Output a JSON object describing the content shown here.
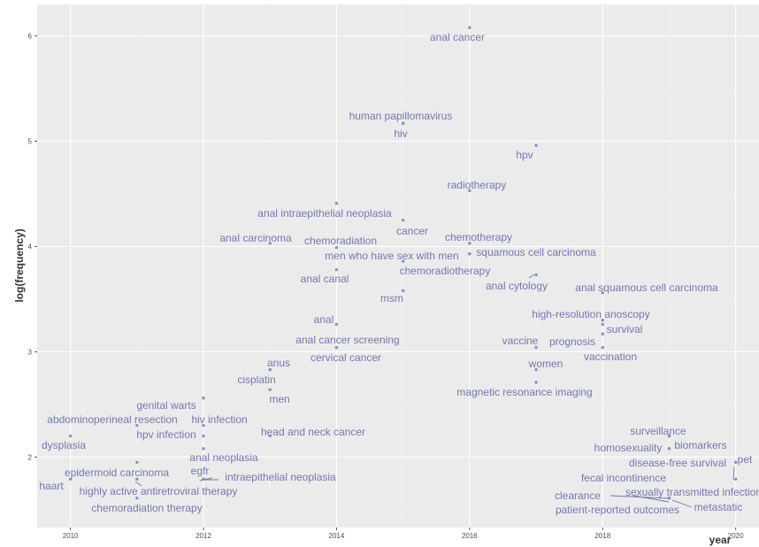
{
  "chart_data": {
    "type": "scatter",
    "title": "",
    "xlabel": "year",
    "ylabel": "log(frequency)",
    "xlim": [
      2009.5,
      2020.35
    ],
    "ylim": [
      1.33,
      6.3
    ],
    "xticks": [
      "2010",
      "2012",
      "2014",
      "2016",
      "2018",
      "2020"
    ],
    "yticks": [
      "2",
      "3",
      "4",
      "5",
      "6"
    ],
    "grid": true,
    "legend": "none",
    "colors": {
      "point": "#8a8fc0",
      "label": "#7378b0",
      "panel": "#ebebeb",
      "grid": "#ffffff"
    },
    "points": [
      {
        "label": "anal cancer",
        "x": 2016,
        "y": 6.08
      },
      {
        "label": "human papillomavirus",
        "x": 2015,
        "y": 5.17
      },
      {
        "label": "hiv",
        "x": 2015,
        "y": 5.17
      },
      {
        "label": "hpv",
        "x": 2017,
        "y": 4.96
      },
      {
        "label": "radiotherapy",
        "x": 2016,
        "y": 4.53
      },
      {
        "label": "anal intraepithelial neoplasia",
        "x": 2014,
        "y": 4.41
      },
      {
        "label": "cancer",
        "x": 2015,
        "y": 4.25
      },
      {
        "label": "anal carcinoma",
        "x": 2013,
        "y": 4.03
      },
      {
        "label": "chemoradiation",
        "x": 2014,
        "y": 3.99
      },
      {
        "label": "chemotherapy",
        "x": 2016,
        "y": 4.03
      },
      {
        "label": "men who have sex with men",
        "x": 2016,
        "y": 3.93
      },
      {
        "label": "squamous cell carcinoma",
        "x": 2016,
        "y": 3.93
      },
      {
        "label": "chemoradiotherapy",
        "x": 2015,
        "y": 3.86
      },
      {
        "label": "anal canal",
        "x": 2014,
        "y": 3.78
      },
      {
        "label": "anal cytology",
        "x": 2017,
        "y": 3.73
      },
      {
        "label": "anal squamous cell carcinoma",
        "x": 2018,
        "y": 3.56
      },
      {
        "label": "msm",
        "x": 2015,
        "y": 3.58
      },
      {
        "label": "high-resolution anoscopy",
        "x": 2018,
        "y": 3.3
      },
      {
        "label": "anal",
        "x": 2014,
        "y": 3.26
      },
      {
        "label": "survival",
        "x": 2018,
        "y": 3.26
      },
      {
        "label": "anal cancer screening",
        "x": 2014,
        "y": 3.04
      },
      {
        "label": "vaccine",
        "x": 2017,
        "y": 3.04
      },
      {
        "label": "prognosis",
        "x": 2018,
        "y": 3.17
      },
      {
        "label": "cervical cancer",
        "x": 2014,
        "y": 3.04
      },
      {
        "label": "vaccination",
        "x": 2018,
        "y": 3.04
      },
      {
        "label": "anus",
        "x": 2013,
        "y": 2.83
      },
      {
        "label": "women",
        "x": 2017,
        "y": 2.83
      },
      {
        "label": "cisplatin",
        "x": 2013,
        "y": 2.83
      },
      {
        "label": "magnetic resonance imaging",
        "x": 2017,
        "y": 2.71
      },
      {
        "label": "men",
        "x": 2013,
        "y": 2.64
      },
      {
        "label": "genital warts",
        "x": 2012,
        "y": 2.56
      },
      {
        "label": "abdominoperineal resection",
        "x": 2011,
        "y": 2.3
      },
      {
        "label": "hiv infection",
        "x": 2012,
        "y": 2.3
      },
      {
        "label": "head and neck cancer",
        "x": 2013,
        "y": 2.2
      },
      {
        "label": "hpv infection",
        "x": 2012,
        "y": 2.2
      },
      {
        "label": "surveillance",
        "x": 2019,
        "y": 2.2
      },
      {
        "label": "dysplasia",
        "x": 2010,
        "y": 2.2
      },
      {
        "label": "biomarkers",
        "x": 2019,
        "y": 2.2
      },
      {
        "label": "homosexuality",
        "x": 2019,
        "y": 2.08
      },
      {
        "label": "anal neoplasia",
        "x": 2012,
        "y": 2.08
      },
      {
        "label": "disease-free survival",
        "x": 2020,
        "y": 1.95
      },
      {
        "label": "pet",
        "x": 2020,
        "y": 1.95
      },
      {
        "label": "epidermoid carcinoma",
        "x": 2011,
        "y": 1.95
      },
      {
        "label": "egfr",
        "x": 2012,
        "y": 1.79
      },
      {
        "label": "fecal incontinence",
        "x": 2020,
        "y": 1.79
      },
      {
        "label": "intraepithelial neoplasia",
        "x": 2012,
        "y": 1.79
      },
      {
        "label": "haart",
        "x": 2010,
        "y": 1.79
      },
      {
        "label": "highly active antiretroviral therapy",
        "x": 2011,
        "y": 1.79
      },
      {
        "label": "clearance",
        "x": 2019,
        "y": 1.61
      },
      {
        "label": "sexually transmitted infections",
        "x": 2019,
        "y": 1.61
      },
      {
        "label": "chemoradiation therapy",
        "x": 2011,
        "y": 1.61
      },
      {
        "label": "metastatic",
        "x": 2019,
        "y": 1.61
      },
      {
        "label": "patient-reported outcomes",
        "x": 2019,
        "y": 1.61
      }
    ]
  }
}
